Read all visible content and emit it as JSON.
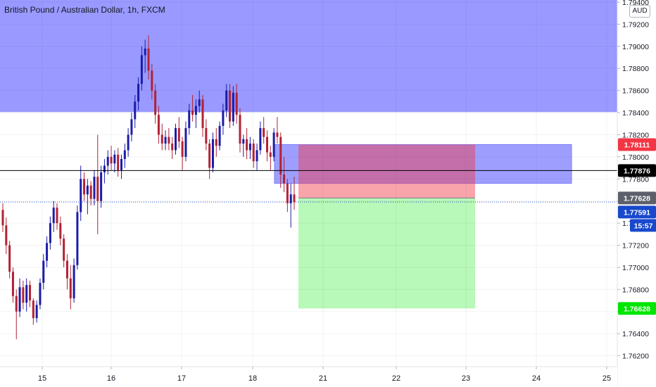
{
  "header": {
    "title": "British Pound / Australian Dollar, 1h, FXCM",
    "currency": "AUD"
  },
  "chart_data": {
    "type": "candlestick",
    "title": "British Pound / Australian Dollar, 1h, FXCM",
    "y_axis": {
      "unit": "AUD",
      "range": [
        1.761,
        1.7945
      ],
      "ticks": [
        "1.79400",
        "1.79200",
        "1.79000",
        "1.78800",
        "1.78600",
        "1.78400",
        "1.78200",
        "1.78000",
        "1.77800",
        "1.77600",
        "1.77400",
        "1.77200",
        "1.77000",
        "1.76800",
        "1.76600",
        "1.76400",
        "1.76200"
      ]
    },
    "x_axis": {
      "ticks": [
        "15",
        "16",
        "17",
        "18",
        "21",
        "22",
        "23",
        "24",
        "25"
      ]
    },
    "price_labels": [
      {
        "value": "1.78111",
        "color": "#f23645",
        "role": "position-stop"
      },
      {
        "value": "1.77876",
        "color": "#000000",
        "role": "horizontal-line"
      },
      {
        "value": "1.77628",
        "color": "#5d606b",
        "role": "position-entry"
      },
      {
        "value": "1.77591",
        "color": "#1848cc",
        "role": "last-price"
      },
      {
        "value": "15:57",
        "color": "#1848cc",
        "role": "countdown"
      },
      {
        "value": "1.76628",
        "color": "#00e600",
        "role": "position-target"
      }
    ],
    "zones": [
      {
        "kind": "supply-zone",
        "top": 1.795,
        "bottom": 1.78405,
        "color": "#9999ff"
      },
      {
        "kind": "supply-zone",
        "top": 1.78111,
        "bottom": 1.7776,
        "color": "#9e9efe"
      }
    ],
    "position": {
      "side": "short",
      "entry": 1.77628,
      "stop": 1.78111,
      "target": 1.76628
    },
    "horizontal_line": 1.77876,
    "last_price": 1.77591,
    "candles": [
      [
        1.7752,
        1.7758,
        1.7732,
        1.7738
      ],
      [
        1.7738,
        1.7745,
        1.7712,
        1.772
      ],
      [
        1.772,
        1.7724,
        1.769,
        1.7696
      ],
      [
        1.7696,
        1.77,
        1.7668,
        1.7674
      ],
      [
        1.7674,
        1.768,
        1.7635,
        1.766
      ],
      [
        1.766,
        1.769,
        1.7655,
        1.7682
      ],
      [
        1.7682,
        1.7688,
        1.7662,
        1.7668
      ],
      [
        1.7668,
        1.769,
        1.766,
        1.7684
      ],
      [
        1.7684,
        1.7688,
        1.7664,
        1.767
      ],
      [
        1.767,
        1.7672,
        1.7648,
        1.7654
      ],
      [
        1.7654,
        1.767,
        1.765,
        1.7666
      ],
      [
        1.7666,
        1.769,
        1.7662,
        1.7686
      ],
      [
        1.7686,
        1.7712,
        1.768,
        1.7706
      ],
      [
        1.7706,
        1.7728,
        1.77,
        1.7722
      ],
      [
        1.7722,
        1.7746,
        1.7716,
        1.774
      ],
      [
        1.774,
        1.776,
        1.7732,
        1.7754
      ],
      [
        1.7754,
        1.7758,
        1.7734,
        1.774
      ],
      [
        1.774,
        1.7746,
        1.772,
        1.7726
      ],
      [
        1.7726,
        1.773,
        1.77,
        1.7706
      ],
      [
        1.7706,
        1.7712,
        1.768,
        1.769
      ],
      [
        1.769,
        1.7702,
        1.7662,
        1.7672
      ],
      [
        1.7672,
        1.7708,
        1.7668,
        1.7702
      ],
      [
        1.7702,
        1.7756,
        1.7698,
        1.775
      ],
      [
        1.775,
        1.7792,
        1.7742,
        1.778
      ],
      [
        1.778,
        1.7786,
        1.776,
        1.7766
      ],
      [
        1.7766,
        1.778,
        1.7748,
        1.7774
      ],
      [
        1.7774,
        1.7778,
        1.7756,
        1.7762
      ],
      [
        1.7762,
        1.7788,
        1.7756,
        1.7782
      ],
      [
        1.7782,
        1.782,
        1.773,
        1.776
      ],
      [
        1.776,
        1.7792,
        1.7754,
        1.7786
      ],
      [
        1.7786,
        1.7798,
        1.7776,
        1.7792
      ],
      [
        1.7792,
        1.7806,
        1.7784,
        1.78
      ],
      [
        1.78,
        1.781,
        1.7788,
        1.7794
      ],
      [
        1.7794,
        1.7806,
        1.7786,
        1.7802
      ],
      [
        1.7802,
        1.7808,
        1.7782,
        1.7788
      ],
      [
        1.7788,
        1.7802,
        1.778,
        1.7798
      ],
      [
        1.7798,
        1.7812,
        1.779,
        1.7806
      ],
      [
        1.7806,
        1.7826,
        1.78,
        1.782
      ],
      [
        1.782,
        1.784,
        1.7814,
        1.7834
      ],
      [
        1.7834,
        1.7856,
        1.7826,
        1.785
      ],
      [
        1.785,
        1.7872,
        1.7842,
        1.7866
      ],
      [
        1.7866,
        1.79,
        1.786,
        1.7892
      ],
      [
        1.7892,
        1.7906,
        1.7876,
        1.7898
      ],
      [
        1.7898,
        1.791,
        1.787,
        1.7878
      ],
      [
        1.7878,
        1.7884,
        1.7852,
        1.786
      ],
      [
        1.786,
        1.7866,
        1.783,
        1.7838
      ],
      [
        1.7838,
        1.7846,
        1.7812,
        1.782
      ],
      [
        1.782,
        1.783,
        1.7806,
        1.7812
      ],
      [
        1.7812,
        1.7824,
        1.7806,
        1.7818
      ],
      [
        1.7818,
        1.7826,
        1.7806,
        1.7812
      ],
      [
        1.7812,
        1.7818,
        1.7798,
        1.7806
      ],
      [
        1.7806,
        1.783,
        1.7802,
        1.7826
      ],
      [
        1.7826,
        1.7836,
        1.7808,
        1.7814
      ],
      [
        1.7814,
        1.7818,
        1.7788,
        1.78
      ],
      [
        1.78,
        1.7832,
        1.7796,
        1.7826
      ],
      [
        1.7826,
        1.7848,
        1.782,
        1.7842
      ],
      [
        1.7842,
        1.7856,
        1.7832,
        1.7838
      ],
      [
        1.7838,
        1.7852,
        1.7826,
        1.7846
      ],
      [
        1.7846,
        1.786,
        1.784,
        1.7852
      ],
      [
        1.7852,
        1.7856,
        1.7818,
        1.7826
      ],
      [
        1.7826,
        1.7834,
        1.7806,
        1.7812
      ],
      [
        1.7812,
        1.7816,
        1.778,
        1.779
      ],
      [
        1.779,
        1.7822,
        1.7786,
        1.7816
      ],
      [
        1.7816,
        1.7826,
        1.78,
        1.781
      ],
      [
        1.781,
        1.7832,
        1.7806,
        1.7828
      ],
      [
        1.7828,
        1.7848,
        1.782,
        1.7842
      ],
      [
        1.7842,
        1.7866,
        1.7836,
        1.786
      ],
      [
        1.786,
        1.7866,
        1.7826,
        1.7832
      ],
      [
        1.7832,
        1.7864,
        1.7828,
        1.7858
      ],
      [
        1.7858,
        1.7866,
        1.783,
        1.7838
      ],
      [
        1.7838,
        1.7844,
        1.7804,
        1.7812
      ],
      [
        1.7812,
        1.782,
        1.78,
        1.7816
      ],
      [
        1.7816,
        1.7826,
        1.7798,
        1.7806
      ],
      [
        1.7806,
        1.7818,
        1.7798,
        1.7812
      ],
      [
        1.7812,
        1.7816,
        1.779,
        1.7796
      ],
      [
        1.7796,
        1.7812,
        1.7788,
        1.7806
      ],
      [
        1.7806,
        1.7832,
        1.7802,
        1.7826
      ],
      [
        1.7826,
        1.7836,
        1.7812,
        1.7818
      ],
      [
        1.7818,
        1.7824,
        1.7796,
        1.7804
      ],
      [
        1.7804,
        1.781,
        1.7788,
        1.78
      ],
      [
        1.78,
        1.7826,
        1.7796,
        1.7822
      ],
      [
        1.7822,
        1.7836,
        1.7812,
        1.7818
      ],
      [
        1.7818,
        1.7822,
        1.7772,
        1.7784
      ],
      [
        1.7784,
        1.78,
        1.7768,
        1.7776
      ],
      [
        1.7776,
        1.778,
        1.775,
        1.7758
      ],
      [
        1.7758,
        1.7776,
        1.7736,
        1.7766
      ],
      [
        1.7766,
        1.7782,
        1.7752,
        1.7759
      ]
    ]
  }
}
